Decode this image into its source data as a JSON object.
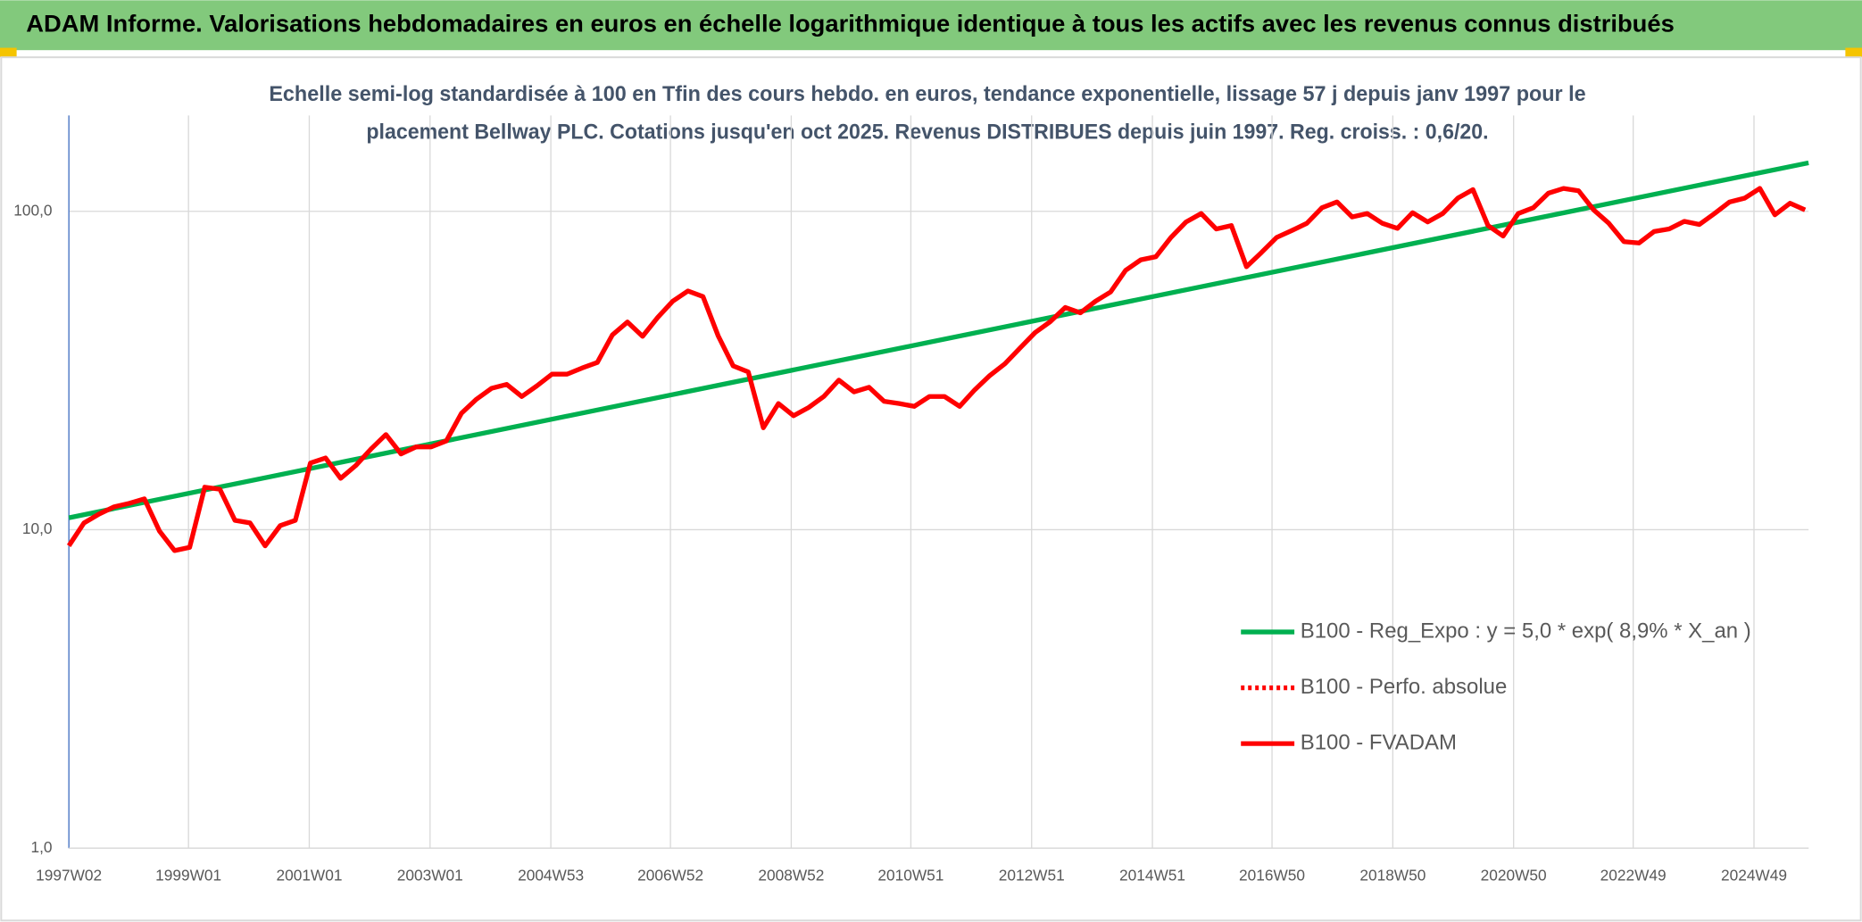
{
  "header": {
    "title": "ADAM Informe. Valorisations hebdomadaires en euros en échelle logarithmique identique à tous les actifs avec les revenus connus distribués"
  },
  "chart_data": {
    "type": "line",
    "title": [
      "Echelle semi-log standardisée à 100 en Tfin des cours hebdo. en euros, tendance exponentielle, lissage 57 j depuis janv 1997 pour le",
      "placement Bellway PLC. Cotations jusqu'en oct 2025. Revenus DISTRIBUES depuis juin 1997. Reg. croiss. : 0,6/20."
    ],
    "yscale": "log",
    "ylim": [
      1,
      200
    ],
    "yticks": [
      {
        "value": 1,
        "label": "1,0"
      },
      {
        "value": 10,
        "label": "10,0"
      },
      {
        "value": 100,
        "label": "100,0"
      }
    ],
    "xlim": [
      "1997W02",
      "2025W44"
    ],
    "xticks": [
      "1997W02",
      "1999W01",
      "2001W01",
      "2003W01",
      "2004W53",
      "2006W52",
      "2008W52",
      "2010W51",
      "2012W51",
      "2014W51",
      "2016W50",
      "2018W50",
      "2020W50",
      "2022W49",
      "2024W49"
    ],
    "grid": true,
    "legend": "right",
    "series": [
      {
        "name": "B100 - Reg_Expo : y = 5,0 * exp( 8,9% *  X_an )",
        "color": "#00b050",
        "dash": "solid",
        "x": [
          "1997W02",
          "2025W44"
        ],
        "values": [
          10.9,
          142
        ]
      },
      {
        "name": "B100 - Perfo. absolue",
        "color": "#ff0000",
        "dash": "dotted"
      },
      {
        "name": "B100 - FVADAM",
        "color": "#ff0000",
        "dash": "solid",
        "x": [
          "1997W02",
          "1997W15",
          "1997W28",
          "1997W41",
          "1998W02",
          "1998W15",
          "1998W28",
          "1998W41",
          "1999W02",
          "1999W15",
          "1999W28",
          "1999W41",
          "2000W02",
          "2000W15",
          "2000W28",
          "2000W41",
          "2001W02",
          "2001W15",
          "2001W28",
          "2001W41",
          "2002W02",
          "2002W15",
          "2002W28",
          "2002W41",
          "2003W02",
          "2003W15",
          "2003W28",
          "2003W41",
          "2004W02",
          "2004W15",
          "2004W28",
          "2004W41",
          "2005W02",
          "2005W15",
          "2005W28",
          "2005W41",
          "2006W02",
          "2006W15",
          "2006W28",
          "2006W41",
          "2007W02",
          "2007W15",
          "2007W28",
          "2007W41",
          "2008W02",
          "2008W15",
          "2008W28",
          "2008W41",
          "2009W02",
          "2009W15",
          "2009W28",
          "2009W41",
          "2010W02",
          "2010W15",
          "2010W28",
          "2010W41",
          "2011W02",
          "2011W15",
          "2011W28",
          "2011W41",
          "2012W02",
          "2012W15",
          "2012W28",
          "2012W41",
          "2013W02",
          "2013W15",
          "2013W28",
          "2013W41",
          "2014W02",
          "2014W15",
          "2014W28",
          "2014W41",
          "2015W02",
          "2015W15",
          "2015W28",
          "2015W41",
          "2016W02",
          "2016W15",
          "2016W28",
          "2016W41",
          "2017W02",
          "2017W15",
          "2017W28",
          "2017W41",
          "2018W02",
          "2018W15",
          "2018W28",
          "2018W41",
          "2019W02",
          "2019W15",
          "2019W28",
          "2019W41",
          "2020W02",
          "2020W15",
          "2020W28",
          "2020W41",
          "2021W02",
          "2021W15",
          "2021W28",
          "2021W41",
          "2022W02",
          "2022W15",
          "2022W28",
          "2022W41",
          "2023W02",
          "2023W15",
          "2023W28",
          "2023W41",
          "2024W02",
          "2024W15",
          "2024W28",
          "2024W41",
          "2025W02",
          "2025W15",
          "2025W28",
          "2025W41"
        ],
        "values": [
          8.9,
          10.5,
          11.2,
          11.8,
          12.1,
          12.5,
          9.9,
          8.6,
          8.8,
          13.6,
          13.4,
          10.7,
          10.5,
          8.9,
          10.3,
          10.7,
          16.2,
          16.8,
          14.5,
          15.9,
          17.9,
          19.9,
          17.3,
          18.2,
          18.2,
          19.0,
          23.2,
          25.7,
          27.8,
          28.6,
          26.2,
          28.3,
          30.8,
          30.8,
          32.2,
          33.5,
          40.9,
          44.9,
          40.5,
          46.4,
          52.2,
          56.2,
          54.0,
          40.7,
          32.7,
          31.3,
          20.9,
          24.9,
          22.8,
          24.2,
          26.2,
          29.5,
          27.1,
          28.0,
          25.3,
          24.9,
          24.4,
          26.2,
          26.2,
          24.4,
          27.5,
          30.5,
          33.2,
          37.2,
          41.6,
          45.0,
          49.9,
          48.0,
          52.2,
          55.8,
          65.3,
          70.4,
          72.0,
          82.8,
          92.6,
          98.4,
          88.0,
          90.2,
          67.0,
          74.3,
          82.8,
          87.0,
          91.7,
          102.6,
          107,
          96.0,
          98.4,
          91.7,
          88.4,
          99.0,
          92.6,
          98.4,
          110,
          117,
          90.2,
          83.6,
          98.4,
          102.6,
          114,
          118,
          116,
          101,
          91.7,
          80.3,
          79.5,
          86.4,
          88.0,
          93.0,
          90.9,
          98.4,
          107,
          110,
          118,
          97.5,
          106,
          101
        ]
      }
    ]
  }
}
